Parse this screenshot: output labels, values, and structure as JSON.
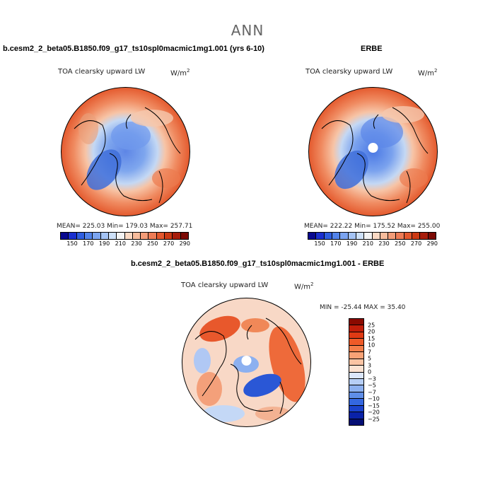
{
  "figure": {
    "main_title": "ANN",
    "panels": [
      {
        "case_title": "b.cesm2_2_beta05.B1850.f09_g17_ts10spl0macmic1mg1.001 (yrs 6-10)",
        "var_title": "TOA clearsky upward LW",
        "units_base": "W/m",
        "units_exp": "2",
        "stats": "MEAN= 225.03   Min= 179.03   Max= 257.71",
        "colorbar_colors": [
          "#08088f",
          "#1a2fcf",
          "#2f5ee0",
          "#5283ea",
          "#7ba4f0",
          "#a4c3f4",
          "#cde0f8",
          "#f3f3f3",
          "#fad9c4",
          "#f7bc9c",
          "#f39c78",
          "#ee7c56",
          "#e4582e",
          "#cc3a14",
          "#a81d0b",
          "#7c0a04"
        ],
        "colorbar_labels": [
          "150",
          "170",
          "190",
          "210",
          "230",
          "250",
          "270",
          "290"
        ]
      },
      {
        "case_title": "ERBE",
        "var_title": "TOA clearsky upward LW",
        "units_base": "W/m",
        "units_exp": "2",
        "stats": "MEAN= 222.22   Min= 175.52   Max= 255.00",
        "colorbar_colors": [
          "#08088f",
          "#1a2fcf",
          "#2f5ee0",
          "#5283ea",
          "#7ba4f0",
          "#a4c3f4",
          "#cde0f8",
          "#f3f3f3",
          "#fad9c4",
          "#f7bc9c",
          "#f39c78",
          "#ee7c56",
          "#e4582e",
          "#cc3a14",
          "#a81d0b",
          "#7c0a04"
        ],
        "colorbar_labels": [
          "150",
          "170",
          "190",
          "210",
          "230",
          "250",
          "270",
          "290"
        ]
      },
      {
        "case_title": "b.cesm2_2_beta05.B1850.f09_g17_ts10spl0macmic1mg1.001 - ERBE",
        "var_title": "TOA clearsky upward LW",
        "units_base": "W/m",
        "units_exp": "2",
        "stats": "MIN = -25.44  MAX =  35.40",
        "colorbar_colors": [
          "#8a0a00",
          "#c21e0a",
          "#e03a14",
          "#ee5a28",
          "#f47e4a",
          "#f8a276",
          "#fac4a4",
          "#fbe2d2",
          "#dbe6fb",
          "#b6cef6",
          "#8cb0f0",
          "#5f8ee8",
          "#3467e0",
          "#1b43cc",
          "#0a22a8",
          "#050f74"
        ],
        "colorbar_labels": [
          "25",
          "20",
          "15",
          "10",
          "7",
          "5",
          "3",
          "0",
          "−3",
          "−5",
          "−7",
          "−10",
          "−15",
          "−20",
          "−25"
        ]
      }
    ]
  }
}
